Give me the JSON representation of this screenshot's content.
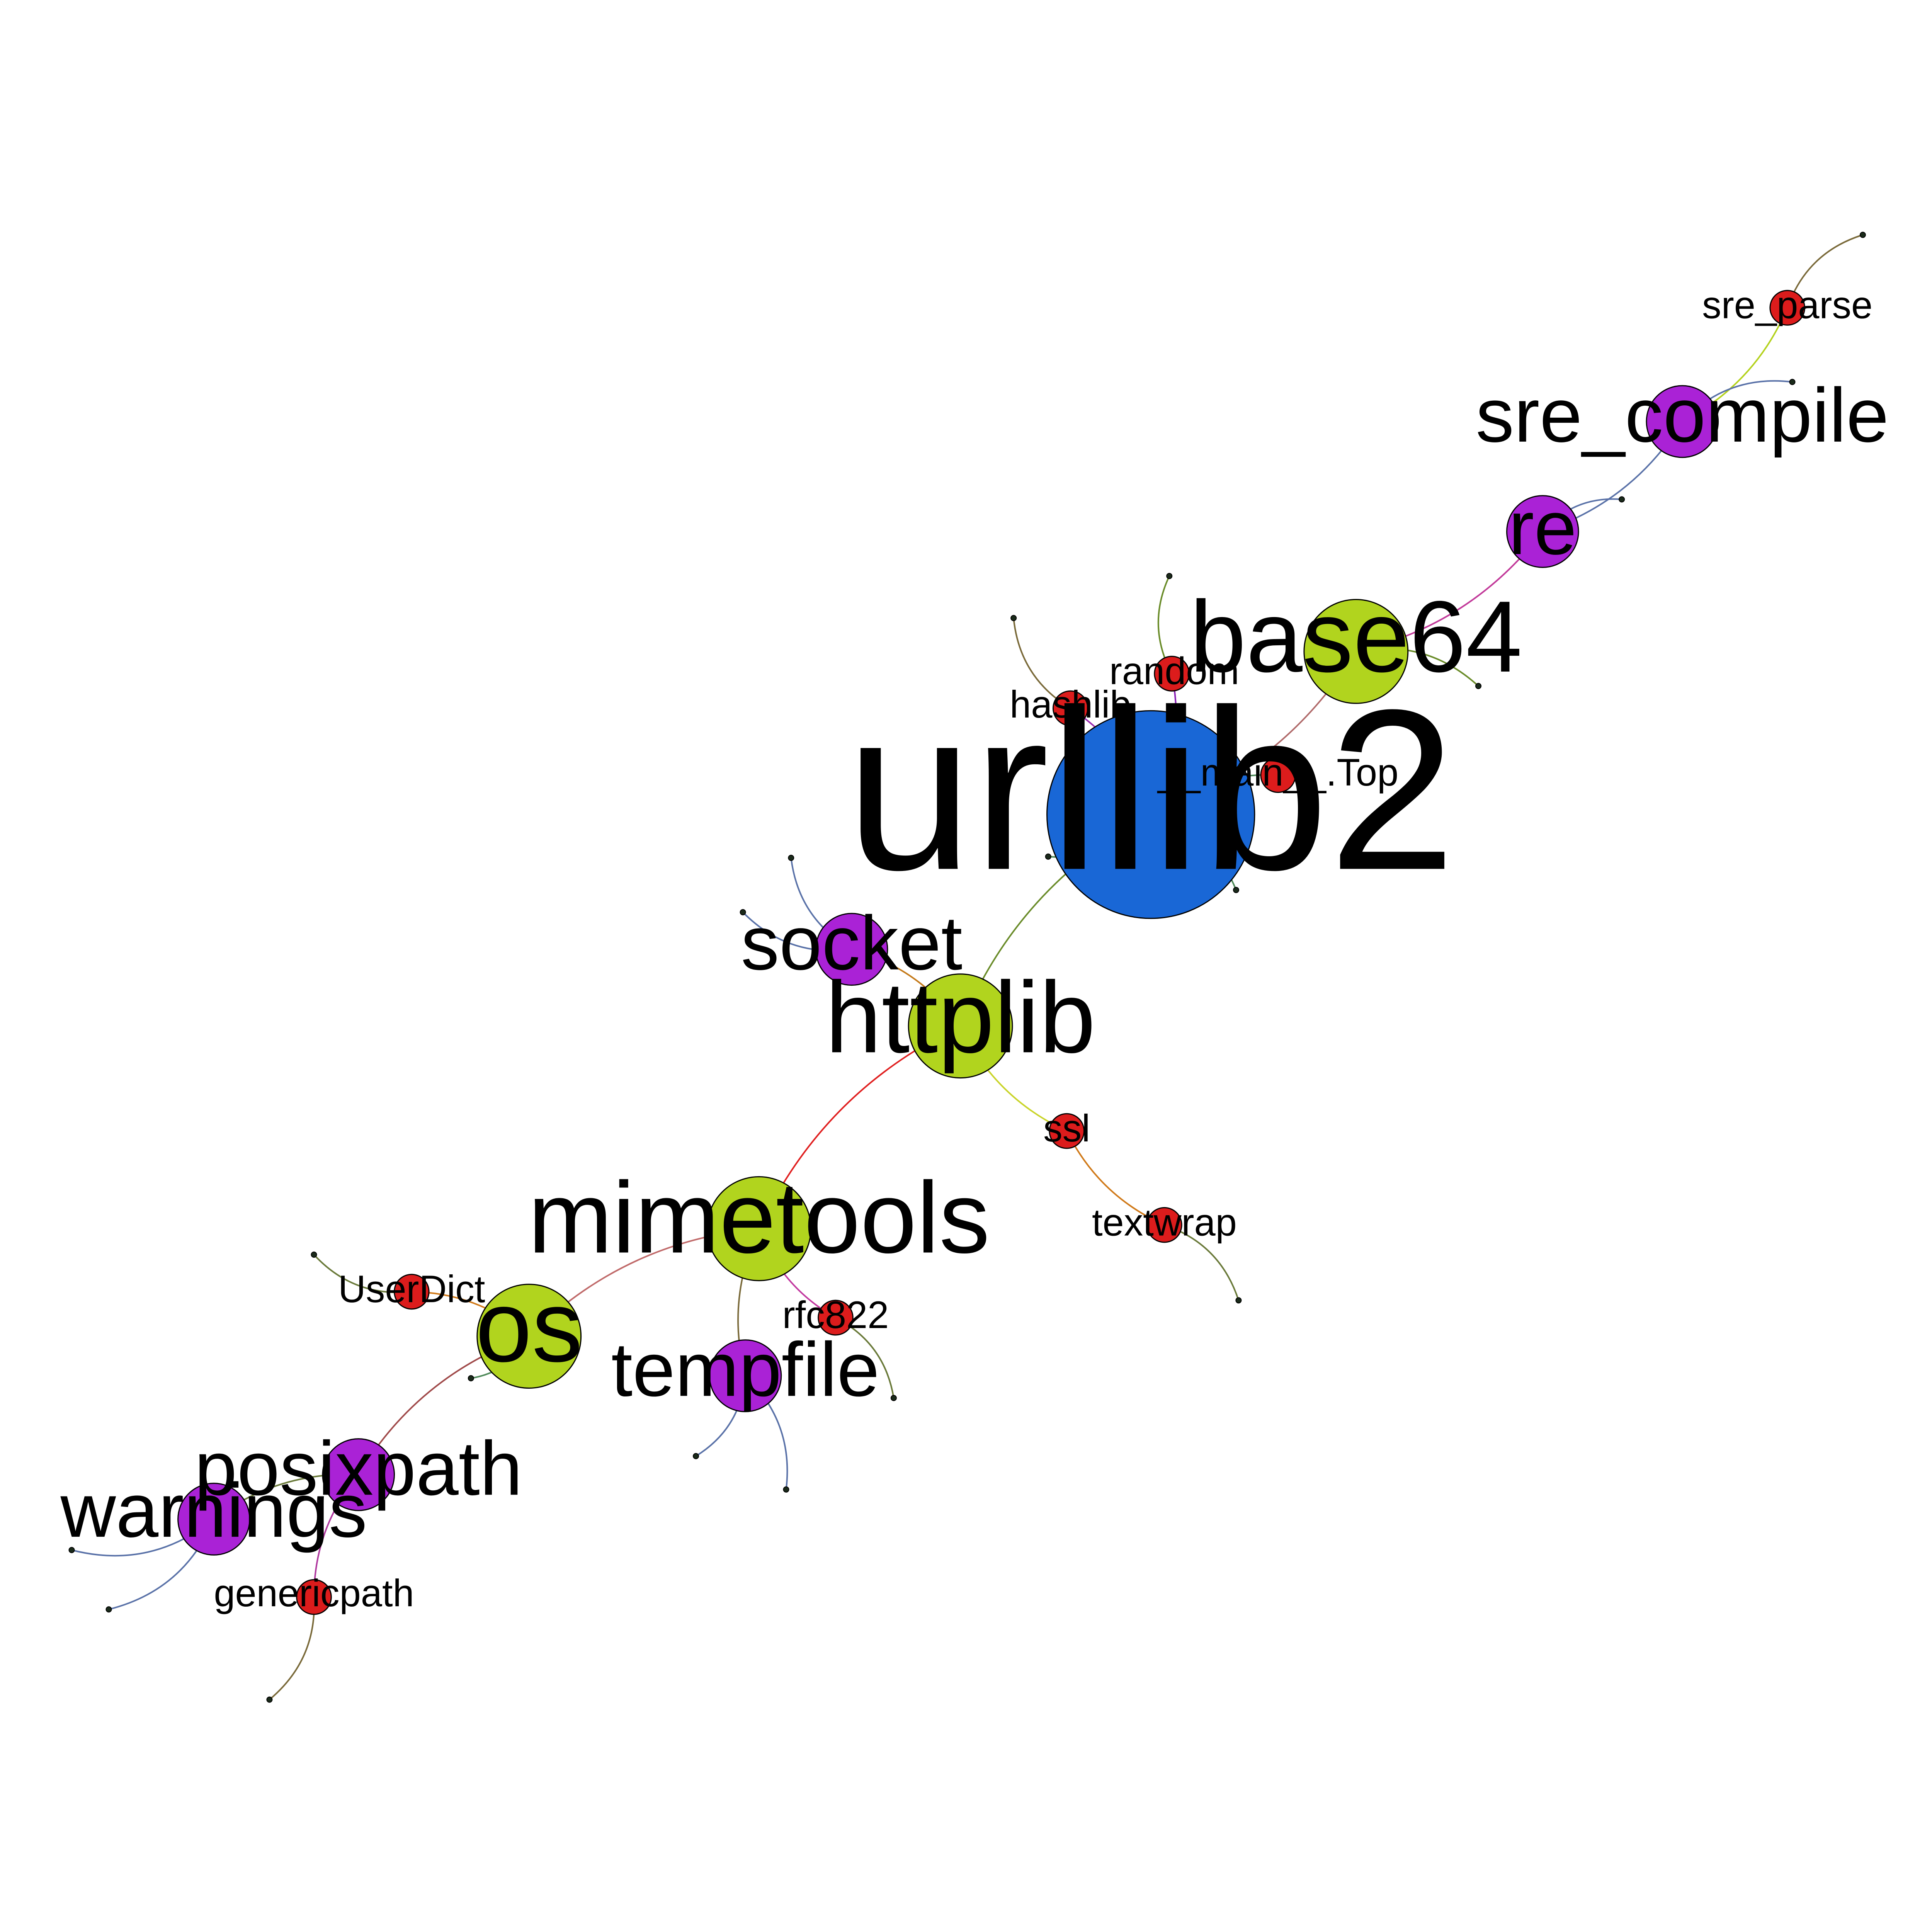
{
  "graph": {
    "root": "urllib2",
    "colors": {
      "hub": "#1967d6",
      "major": "#b1d41e",
      "intermediate": "#aa22d6",
      "minor": "#dc1c1c"
    },
    "nodes": [
      {
        "id": "urllib2",
        "label": "urllib2",
        "tier": "hub"
      },
      {
        "id": "httplib",
        "label": "httplib",
        "tier": "major"
      },
      {
        "id": "mimetools",
        "label": "mimetools",
        "tier": "major"
      },
      {
        "id": "base64",
        "label": "base64",
        "tier": "major"
      },
      {
        "id": "os",
        "label": "os",
        "tier": "major"
      },
      {
        "id": "socket",
        "label": "socket",
        "tier": "intermediate"
      },
      {
        "id": "re",
        "label": "re",
        "tier": "intermediate"
      },
      {
        "id": "sre_compile",
        "label": "sre_compile",
        "tier": "intermediate"
      },
      {
        "id": "tempfile",
        "label": "tempfile",
        "tier": "intermediate"
      },
      {
        "id": "posixpath",
        "label": "posixpath",
        "tier": "intermediate"
      },
      {
        "id": "warnings",
        "label": "warnings",
        "tier": "intermediate"
      },
      {
        "id": "sre_parse",
        "label": "sre_parse",
        "tier": "minor"
      },
      {
        "id": "random",
        "label": "random",
        "tier": "minor"
      },
      {
        "id": "hashlib",
        "label": "hashlib",
        "tier": "minor"
      },
      {
        "id": "main_top",
        "label": "__main__.Top",
        "tier": "minor"
      },
      {
        "id": "ssl",
        "label": "ssl",
        "tier": "minor"
      },
      {
        "id": "textwrap",
        "label": "textwrap",
        "tier": "minor"
      },
      {
        "id": "userdict",
        "label": "UserDict",
        "tier": "minor"
      },
      {
        "id": "rfc822",
        "label": "rfc822",
        "tier": "minor"
      },
      {
        "id": "genericpath",
        "label": "genericpath",
        "tier": "minor"
      }
    ],
    "edges": [
      {
        "source": "main_top",
        "target": "urllib2"
      },
      {
        "source": "urllib2",
        "target": "httplib"
      },
      {
        "source": "urllib2",
        "target": "base64"
      },
      {
        "source": "urllib2",
        "target": "hashlib"
      },
      {
        "source": "urllib2",
        "target": "random"
      },
      {
        "source": "base64",
        "target": "re"
      },
      {
        "source": "re",
        "target": "sre_compile"
      },
      {
        "source": "sre_compile",
        "target": "sre_parse"
      },
      {
        "source": "httplib",
        "target": "socket"
      },
      {
        "source": "httplib",
        "target": "mimetools"
      },
      {
        "source": "httplib",
        "target": "ssl"
      },
      {
        "source": "ssl",
        "target": "textwrap"
      },
      {
        "source": "mimetools",
        "target": "os"
      },
      {
        "source": "mimetools",
        "target": "tempfile"
      },
      {
        "source": "mimetools",
        "target": "rfc822"
      },
      {
        "source": "os",
        "target": "userdict"
      },
      {
        "source": "os",
        "target": "posixpath"
      },
      {
        "source": "posixpath",
        "target": "warnings"
      },
      {
        "source": "posixpath",
        "target": "genericpath"
      }
    ]
  }
}
